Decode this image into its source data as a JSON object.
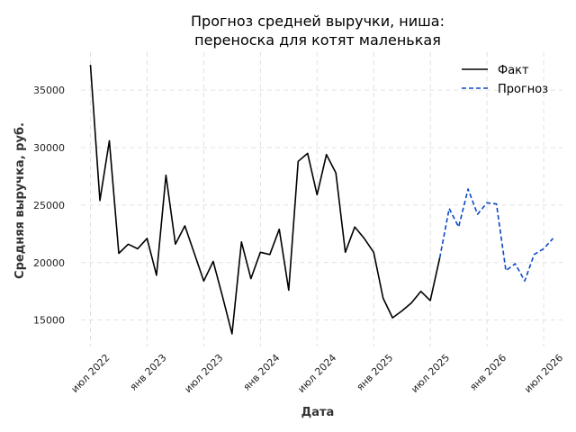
{
  "chart_data": {
    "type": "line",
    "title_line1": "Прогноз средней выручки, ниша:",
    "title_line2": "переноска для котят маленькая",
    "xlabel": "Дата",
    "ylabel": "Средняя выручка, руб.",
    "grid": true,
    "legend_position": "top-right",
    "ylim": [
      12700,
      38300
    ],
    "xlim": [
      "2022-06",
      "2026-09"
    ],
    "y_ticks": [
      15000,
      20000,
      25000,
      30000,
      35000
    ],
    "x_ticks": [
      {
        "date": "2022-07",
        "label": "июл 2022"
      },
      {
        "date": "2023-01",
        "label": "янв 2023"
      },
      {
        "date": "2023-07",
        "label": "июл 2023"
      },
      {
        "date": "2024-01",
        "label": "янв 2024"
      },
      {
        "date": "2024-07",
        "label": "июл 2024"
      },
      {
        "date": "2025-01",
        "label": "янв 2025"
      },
      {
        "date": "2025-07",
        "label": "июл 2025"
      },
      {
        "date": "2026-01",
        "label": "янв 2026"
      },
      {
        "date": "2026-07",
        "label": "июл 2026"
      }
    ],
    "series": [
      {
        "name": "Факт",
        "color": "#000000",
        "style": "solid",
        "x": [
          "2022-07",
          "2022-08",
          "2022-09",
          "2022-10",
          "2022-11",
          "2022-12",
          "2023-01",
          "2023-02",
          "2023-03",
          "2023-04",
          "2023-05",
          "2023-06",
          "2023-07",
          "2023-08",
          "2023-09",
          "2023-10",
          "2023-11",
          "2023-12",
          "2024-01",
          "2024-02",
          "2024-03",
          "2024-04",
          "2024-05",
          "2024-06",
          "2024-07",
          "2024-08",
          "2024-09",
          "2024-10",
          "2024-11",
          "2024-12",
          "2025-01",
          "2025-02",
          "2025-03",
          "2025-04",
          "2025-05",
          "2025-06",
          "2025-07",
          "2025-08"
        ],
        "values": [
          37200,
          25400,
          30600,
          20800,
          21600,
          21200,
          22100,
          18900,
          27600,
          21600,
          23200,
          20800,
          18400,
          20100,
          17000,
          13800,
          21800,
          18600,
          20900,
          20700,
          22900,
          17600,
          28800,
          29500,
          25900,
          29400,
          27800,
          20900,
          23100,
          22100,
          20900,
          16900,
          15200,
          15800,
          16500,
          17500,
          16700,
          20400
        ]
      },
      {
        "name": "Прогноз",
        "color": "#0a47c8",
        "style": "dashed",
        "x": [
          "2025-08",
          "2025-09",
          "2025-10",
          "2025-11",
          "2025-12",
          "2026-01",
          "2026-02",
          "2026-03",
          "2026-04",
          "2026-05",
          "2026-06",
          "2026-07",
          "2026-08"
        ],
        "values": [
          20400,
          24700,
          23100,
          26400,
          24200,
          25200,
          25100,
          19300,
          19900,
          18400,
          20700,
          21200,
          22100
        ]
      }
    ]
  }
}
